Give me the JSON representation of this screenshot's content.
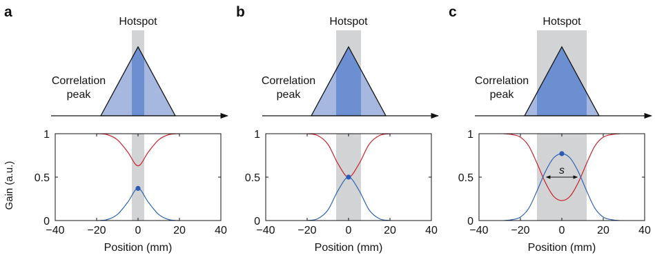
{
  "colors": {
    "gray": "#d2d3d5",
    "tri_light": "#a6b8df",
    "tri_dark": "#6b8fd0",
    "red": "#c9202c",
    "blue": "#2e63b1",
    "dot": "#2b5bb5",
    "text": "#111111"
  },
  "labels": {
    "hotspot": "Hotspot",
    "correlation": "Correlation",
    "peak": "peak",
    "xlabel": "Position (mm)",
    "ylabel": "Gain (a.u.)",
    "s": "s"
  },
  "chart_data": [
    {
      "panel": "a",
      "type": "line",
      "xlabel": "Position (mm)",
      "ylabel": "Gain (a.u.)",
      "xlim": [
        -40,
        40
      ],
      "ylim": [
        0,
        1
      ],
      "xticks": [
        "−40",
        "−20",
        "0",
        "20",
        "40"
      ],
      "yticks": [
        "0",
        "0.5",
        "1"
      ],
      "hotspot_range": [
        -3,
        3
      ],
      "triangle_base": [
        -18,
        18
      ],
      "series": [
        {
          "color": "red",
          "x": [
            -20,
            -15,
            -10,
            -5,
            0,
            5,
            10,
            15,
            20
          ],
          "y": [
            1.0,
            0.99,
            0.93,
            0.79,
            0.63,
            0.79,
            0.93,
            0.99,
            1.0
          ]
        },
        {
          "color": "blue",
          "x": [
            -20,
            -15,
            -10,
            -5,
            0,
            5,
            10,
            15,
            20
          ],
          "y": [
            0.0,
            0.01,
            0.07,
            0.21,
            0.37,
            0.21,
            0.07,
            0.01,
            0.0
          ]
        }
      ],
      "peak_marker": {
        "x": 0,
        "y": 0.37
      },
      "width_marker": null
    },
    {
      "panel": "b",
      "type": "line",
      "xlabel": "Position (mm)",
      "ylabel": "",
      "xlim": [
        -40,
        40
      ],
      "ylim": [
        0,
        1
      ],
      "xticks": [
        "−40",
        "−20",
        "0",
        "20",
        "40"
      ],
      "yticks": [
        "0",
        "0.5",
        "1"
      ],
      "hotspot_range": [
        -6,
        6
      ],
      "triangle_base": [
        -18,
        18
      ],
      "series": [
        {
          "color": "red",
          "x": [
            -20,
            -15,
            -10,
            -5,
            0,
            5,
            10,
            15,
            20
          ],
          "y": [
            1.0,
            0.98,
            0.88,
            0.65,
            0.5,
            0.65,
            0.88,
            0.98,
            1.0
          ]
        },
        {
          "color": "blue",
          "x": [
            -20,
            -15,
            -10,
            -5,
            0,
            5,
            10,
            15,
            20
          ],
          "y": [
            0.0,
            0.02,
            0.12,
            0.35,
            0.5,
            0.35,
            0.12,
            0.02,
            0.0
          ]
        }
      ],
      "peak_marker": {
        "x": 0,
        "y": 0.5
      },
      "width_marker": null
    },
    {
      "panel": "c",
      "type": "line",
      "xlabel": "Position (mm)",
      "ylabel": "",
      "xlim": [
        -40,
        40
      ],
      "ylim": [
        0,
        1
      ],
      "xticks": [
        "−40",
        "−20",
        "0",
        "20",
        "40"
      ],
      "yticks": [
        "0",
        "0.5",
        "1"
      ],
      "hotspot_range": [
        -12,
        12
      ],
      "triangle_base": [
        -18,
        18
      ],
      "series": [
        {
          "color": "red",
          "x": [
            -28,
            -24,
            -20,
            -16,
            -12,
            -8,
            -4,
            0,
            4,
            8,
            12,
            16,
            20,
            24,
            28
          ],
          "y": [
            1.0,
            0.99,
            0.96,
            0.86,
            0.66,
            0.44,
            0.28,
            0.23,
            0.28,
            0.44,
            0.66,
            0.86,
            0.96,
            0.99,
            1.0
          ]
        },
        {
          "color": "blue",
          "x": [
            -28,
            -24,
            -20,
            -16,
            -12,
            -8,
            -4,
            0,
            4,
            8,
            12,
            16,
            20,
            24,
            28
          ],
          "y": [
            0.0,
            0.01,
            0.04,
            0.14,
            0.34,
            0.56,
            0.72,
            0.77,
            0.72,
            0.56,
            0.34,
            0.14,
            0.04,
            0.01,
            0.0
          ]
        }
      ],
      "peak_marker": {
        "x": 0,
        "y": 0.77
      },
      "width_marker": {
        "x1": -7.5,
        "x2": 7.5,
        "y": 0.5,
        "label": "s"
      }
    }
  ]
}
